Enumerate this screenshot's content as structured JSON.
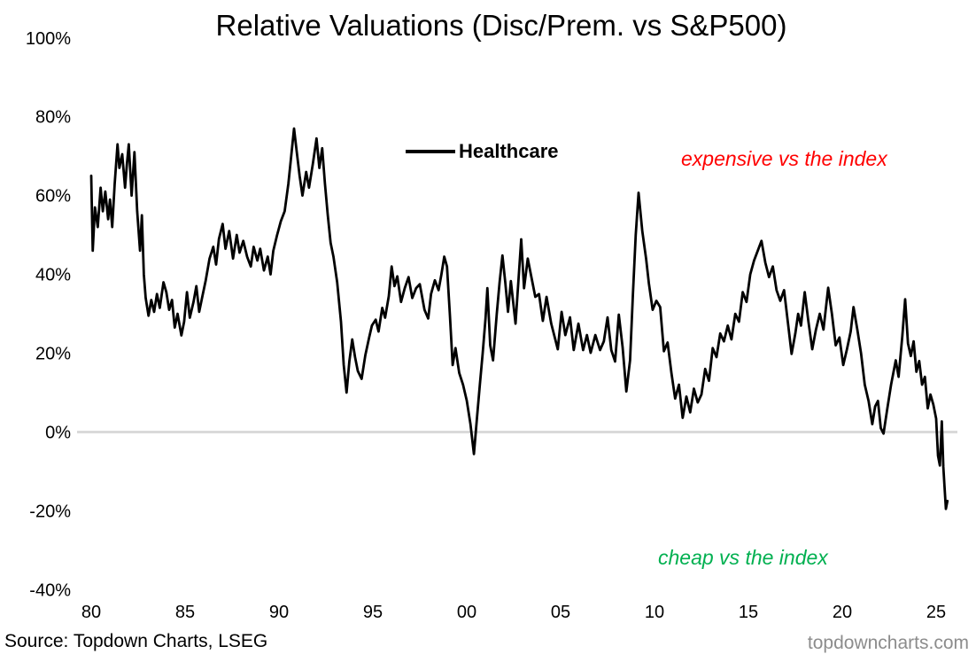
{
  "title": "Relative Valuations (Disc/Prem. vs S&P500)",
  "legend": {
    "label": "Healthcare"
  },
  "annotations": {
    "expensive": {
      "text": "expensive vs the index",
      "color": "#FF0000"
    },
    "cheap": {
      "text": "cheap vs the index",
      "color": "#00B050"
    }
  },
  "footer": {
    "source": "Source: Topdown Charts, LSEG",
    "watermark": "topdowncharts.com",
    "watermark_color": "#8C8C8C"
  },
  "chart_data": {
    "type": "line",
    "title": "Relative Valuations (Disc/Prem. vs S&P500)",
    "xlabel": "",
    "ylabel": "",
    "grid": "zero-line-only",
    "zero_line_color": "#D9D9D9",
    "legend_position": "top-center",
    "x_axis": {
      "tick_labels": [
        "80",
        "85",
        "90",
        "95",
        "00",
        "05",
        "10",
        "15",
        "20",
        "25"
      ],
      "tick_years": [
        1980,
        1985,
        1990,
        1995,
        2000,
        2005,
        2010,
        2015,
        2020,
        2025
      ],
      "range": [
        1980,
        2026
      ]
    },
    "y_axis": {
      "tick_values": [
        100,
        80,
        60,
        40,
        20,
        0,
        -20,
        -40
      ],
      "tick_labels": [
        "100%",
        "80%",
        "60%",
        "40%",
        "20%",
        "0%",
        "-20%",
        "-40%"
      ],
      "range": [
        -40,
        100
      ],
      "unit": "percent"
    },
    "series": [
      {
        "name": "Healthcare",
        "color": "#000000",
        "points": [
          [
            1980.0,
            65
          ],
          [
            1980.08,
            46
          ],
          [
            1980.2,
            57
          ],
          [
            1980.35,
            52
          ],
          [
            1980.5,
            62
          ],
          [
            1980.62,
            56
          ],
          [
            1980.75,
            61
          ],
          [
            1980.9,
            54
          ],
          [
            1981.0,
            59
          ],
          [
            1981.12,
            52
          ],
          [
            1981.25,
            63
          ],
          [
            1981.4,
            73
          ],
          [
            1981.5,
            67
          ],
          [
            1981.65,
            70.5
          ],
          [
            1981.8,
            62
          ],
          [
            1981.9,
            68
          ],
          [
            1982.0,
            73
          ],
          [
            1982.15,
            60
          ],
          [
            1982.3,
            71
          ],
          [
            1982.45,
            56
          ],
          [
            1982.6,
            46
          ],
          [
            1982.7,
            55
          ],
          [
            1982.8,
            40
          ],
          [
            1982.9,
            34
          ],
          [
            1983.05,
            29.5
          ],
          [
            1983.2,
            33.5
          ],
          [
            1983.35,
            30.5
          ],
          [
            1983.5,
            35
          ],
          [
            1983.65,
            31.5
          ],
          [
            1983.85,
            38
          ],
          [
            1984.0,
            35.5
          ],
          [
            1984.15,
            31
          ],
          [
            1984.3,
            33.5
          ],
          [
            1984.45,
            26.5
          ],
          [
            1984.6,
            30
          ],
          [
            1984.8,
            24.5
          ],
          [
            1984.95,
            28
          ],
          [
            1985.1,
            35.5
          ],
          [
            1985.25,
            29
          ],
          [
            1985.45,
            33
          ],
          [
            1985.6,
            37
          ],
          [
            1985.75,
            30.5
          ],
          [
            1985.9,
            34
          ],
          [
            1986.1,
            38.5
          ],
          [
            1986.3,
            44
          ],
          [
            1986.5,
            47
          ],
          [
            1986.65,
            42.5
          ],
          [
            1986.8,
            49
          ],
          [
            1987.0,
            52.8
          ],
          [
            1987.15,
            46.5
          ],
          [
            1987.35,
            51
          ],
          [
            1987.55,
            44
          ],
          [
            1987.75,
            50
          ],
          [
            1987.9,
            45.5
          ],
          [
            1988.1,
            48.5
          ],
          [
            1988.3,
            44.5
          ],
          [
            1988.5,
            42
          ],
          [
            1988.65,
            47
          ],
          [
            1988.85,
            43.5
          ],
          [
            1989.0,
            46.5
          ],
          [
            1989.2,
            41
          ],
          [
            1989.4,
            44.5
          ],
          [
            1989.55,
            40
          ],
          [
            1989.7,
            46
          ],
          [
            1989.9,
            50
          ],
          [
            1990.1,
            53.5
          ],
          [
            1990.3,
            56
          ],
          [
            1990.5,
            63
          ],
          [
            1990.65,
            70
          ],
          [
            1990.8,
            77
          ],
          [
            1990.95,
            71
          ],
          [
            1991.1,
            65
          ],
          [
            1991.25,
            60
          ],
          [
            1991.45,
            66
          ],
          [
            1991.6,
            62
          ],
          [
            1991.8,
            68
          ],
          [
            1992.0,
            74.5
          ],
          [
            1992.15,
            67
          ],
          [
            1992.3,
            72
          ],
          [
            1992.45,
            63
          ],
          [
            1992.6,
            55
          ],
          [
            1992.75,
            48
          ],
          [
            1992.9,
            44.5
          ],
          [
            1993.1,
            38
          ],
          [
            1993.3,
            28
          ],
          [
            1993.45,
            17
          ],
          [
            1993.6,
            10
          ],
          [
            1993.75,
            18
          ],
          [
            1993.9,
            23.5
          ],
          [
            1994.05,
            19
          ],
          [
            1994.2,
            15.5
          ],
          [
            1994.4,
            13.5
          ],
          [
            1994.6,
            19.5
          ],
          [
            1994.8,
            24
          ],
          [
            1994.95,
            27
          ],
          [
            1995.15,
            28.5
          ],
          [
            1995.3,
            25.5
          ],
          [
            1995.5,
            31.5
          ],
          [
            1995.65,
            29
          ],
          [
            1995.85,
            34.5
          ],
          [
            1996.0,
            42
          ],
          [
            1996.15,
            37
          ],
          [
            1996.3,
            39.5
          ],
          [
            1996.5,
            33
          ],
          [
            1996.7,
            36.5
          ],
          [
            1996.9,
            39.3
          ],
          [
            1997.1,
            34
          ],
          [
            1997.3,
            36.5
          ],
          [
            1997.5,
            37.5
          ],
          [
            1997.75,
            31
          ],
          [
            1997.95,
            28.8
          ],
          [
            1998.1,
            35
          ],
          [
            1998.3,
            38.5
          ],
          [
            1998.5,
            36
          ],
          [
            1998.65,
            40
          ],
          [
            1998.8,
            44.5
          ],
          [
            1998.95,
            42
          ],
          [
            1999.1,
            30
          ],
          [
            1999.25,
            17
          ],
          [
            1999.4,
            21.3
          ],
          [
            1999.6,
            15
          ],
          [
            1999.8,
            12
          ],
          [
            2000.0,
            8
          ],
          [
            2000.2,
            2
          ],
          [
            2000.38,
            -5.6
          ],
          [
            2000.55,
            4
          ],
          [
            2000.7,
            12
          ],
          [
            2000.85,
            20
          ],
          [
            2001.0,
            28.8
          ],
          [
            2001.1,
            36.5
          ],
          [
            2001.25,
            22
          ],
          [
            2001.4,
            18.2
          ],
          [
            2001.6,
            30
          ],
          [
            2001.75,
            38
          ],
          [
            2001.9,
            44.8
          ],
          [
            2002.05,
            38
          ],
          [
            2002.2,
            30.5
          ],
          [
            2002.35,
            38.3
          ],
          [
            2002.6,
            27.5
          ],
          [
            2002.9,
            48.9
          ],
          [
            2003.05,
            36.5
          ],
          [
            2003.25,
            44
          ],
          [
            2003.45,
            39.2
          ],
          [
            2003.65,
            34.3
          ],
          [
            2003.85,
            35
          ],
          [
            2004.05,
            28.2
          ],
          [
            2004.25,
            34.3
          ],
          [
            2004.5,
            27.5
          ],
          [
            2004.85,
            21
          ],
          [
            2005.05,
            30.5
          ],
          [
            2005.25,
            24.6
          ],
          [
            2005.5,
            29.1
          ],
          [
            2005.7,
            20.8
          ],
          [
            2005.95,
            27.5
          ],
          [
            2006.2,
            20.8
          ],
          [
            2006.4,
            24.6
          ],
          [
            2006.6,
            20.1
          ],
          [
            2006.85,
            24.6
          ],
          [
            2007.1,
            20.8
          ],
          [
            2007.3,
            23
          ],
          [
            2007.5,
            29.1
          ],
          [
            2007.7,
            20.8
          ],
          [
            2007.9,
            17.9
          ],
          [
            2008.1,
            29.8
          ],
          [
            2008.3,
            21.5
          ],
          [
            2008.5,
            10.3
          ],
          [
            2008.7,
            18.2
          ],
          [
            2008.85,
            34.8
          ],
          [
            2009.0,
            50
          ],
          [
            2009.15,
            60.7
          ],
          [
            2009.35,
            51
          ],
          [
            2009.55,
            44
          ],
          [
            2009.7,
            37.8
          ],
          [
            2009.9,
            31
          ],
          [
            2010.1,
            33.3
          ],
          [
            2010.3,
            31.7
          ],
          [
            2010.5,
            20.5
          ],
          [
            2010.7,
            22.7
          ],
          [
            2010.9,
            15
          ],
          [
            2011.1,
            8.5
          ],
          [
            2011.3,
            12
          ],
          [
            2011.5,
            3.6
          ],
          [
            2011.7,
            9
          ],
          [
            2011.9,
            5
          ],
          [
            2012.1,
            11
          ],
          [
            2012.3,
            7.5
          ],
          [
            2012.5,
            9.5
          ],
          [
            2012.7,
            16
          ],
          [
            2012.9,
            13
          ],
          [
            2013.1,
            21.3
          ],
          [
            2013.3,
            19
          ],
          [
            2013.5,
            25
          ],
          [
            2013.7,
            23
          ],
          [
            2013.9,
            27
          ],
          [
            2014.1,
            23.5
          ],
          [
            2014.3,
            30
          ],
          [
            2014.5,
            28
          ],
          [
            2014.7,
            35.5
          ],
          [
            2014.9,
            33
          ],
          [
            2015.1,
            40
          ],
          [
            2015.3,
            43.5
          ],
          [
            2015.5,
            46
          ],
          [
            2015.7,
            48.5
          ],
          [
            2015.9,
            43
          ],
          [
            2016.1,
            39.3
          ],
          [
            2016.3,
            42
          ],
          [
            2016.5,
            36
          ],
          [
            2016.7,
            33.3
          ],
          [
            2016.9,
            36
          ],
          [
            2017.1,
            28
          ],
          [
            2017.3,
            19.8
          ],
          [
            2017.5,
            25
          ],
          [
            2017.65,
            30
          ],
          [
            2017.8,
            27
          ],
          [
            2018.0,
            35.5
          ],
          [
            2018.2,
            28
          ],
          [
            2018.4,
            21
          ],
          [
            2018.6,
            26
          ],
          [
            2018.8,
            30
          ],
          [
            2019.0,
            26
          ],
          [
            2019.25,
            36.6
          ],
          [
            2019.45,
            30
          ],
          [
            2019.65,
            22
          ],
          [
            2019.85,
            24
          ],
          [
            2020.05,
            17
          ],
          [
            2020.25,
            21
          ],
          [
            2020.45,
            25.5
          ],
          [
            2020.6,
            31.7
          ],
          [
            2020.8,
            26
          ],
          [
            2021.0,
            20
          ],
          [
            2021.2,
            12
          ],
          [
            2021.4,
            7.9
          ],
          [
            2021.6,
            2
          ],
          [
            2021.75,
            6.5
          ],
          [
            2021.9,
            7.9
          ],
          [
            2022.05,
            1
          ],
          [
            2022.2,
            -0.4
          ],
          [
            2022.4,
            6
          ],
          [
            2022.6,
            12
          ],
          [
            2022.85,
            18.2
          ],
          [
            2023.0,
            14
          ],
          [
            2023.2,
            24.3
          ],
          [
            2023.35,
            33.7
          ],
          [
            2023.5,
            22.5
          ],
          [
            2023.65,
            19.3
          ],
          [
            2023.8,
            23
          ],
          [
            2023.95,
            15.3
          ],
          [
            2024.1,
            18
          ],
          [
            2024.25,
            12
          ],
          [
            2024.4,
            14
          ],
          [
            2024.55,
            6
          ],
          [
            2024.7,
            9.5
          ],
          [
            2024.85,
            7
          ],
          [
            2025.0,
            3.4
          ],
          [
            2025.1,
            -6
          ],
          [
            2025.2,
            -8.5
          ],
          [
            2025.3,
            2.7
          ],
          [
            2025.38,
            -8.8
          ],
          [
            2025.45,
            -14
          ],
          [
            2025.52,
            -19.5
          ],
          [
            2025.6,
            -17.5
          ]
        ]
      }
    ]
  }
}
